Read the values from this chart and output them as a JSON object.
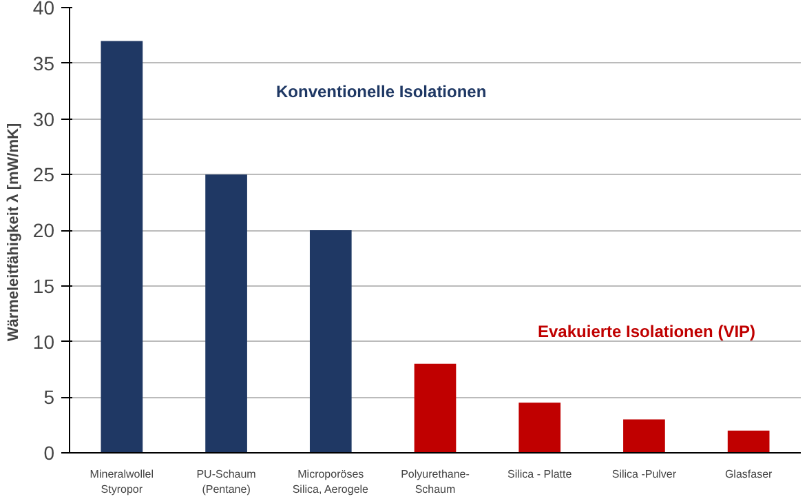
{
  "chart_data": {
    "type": "bar",
    "ylabel": "Wärmeleitfähigkeit  λ [mW/mK]",
    "categories": [
      "Mineralwollel\nStyropor",
      "PU-Schaum\n(Pentane)",
      "Microporöses\nSilica, Aerogele",
      "Polyurethane-\nSchaum",
      "Silica - Platte",
      "Silica -Pulver",
      "Glasfaser"
    ],
    "values": [
      37,
      25,
      20,
      8,
      4.5,
      3,
      2
    ],
    "colors": [
      "#1f3864",
      "#1f3864",
      "#1f3864",
      "#c00000",
      "#c00000",
      "#c00000",
      "#c00000"
    ],
    "ylim": [
      0,
      40
    ],
    "yticks": [
      0,
      5,
      10,
      15,
      20,
      25,
      30,
      35,
      40
    ],
    "grid": "y",
    "annotations": [
      "Konventionelle Isolationen",
      "Evakuierte Isolationen (VIP)"
    ]
  }
}
